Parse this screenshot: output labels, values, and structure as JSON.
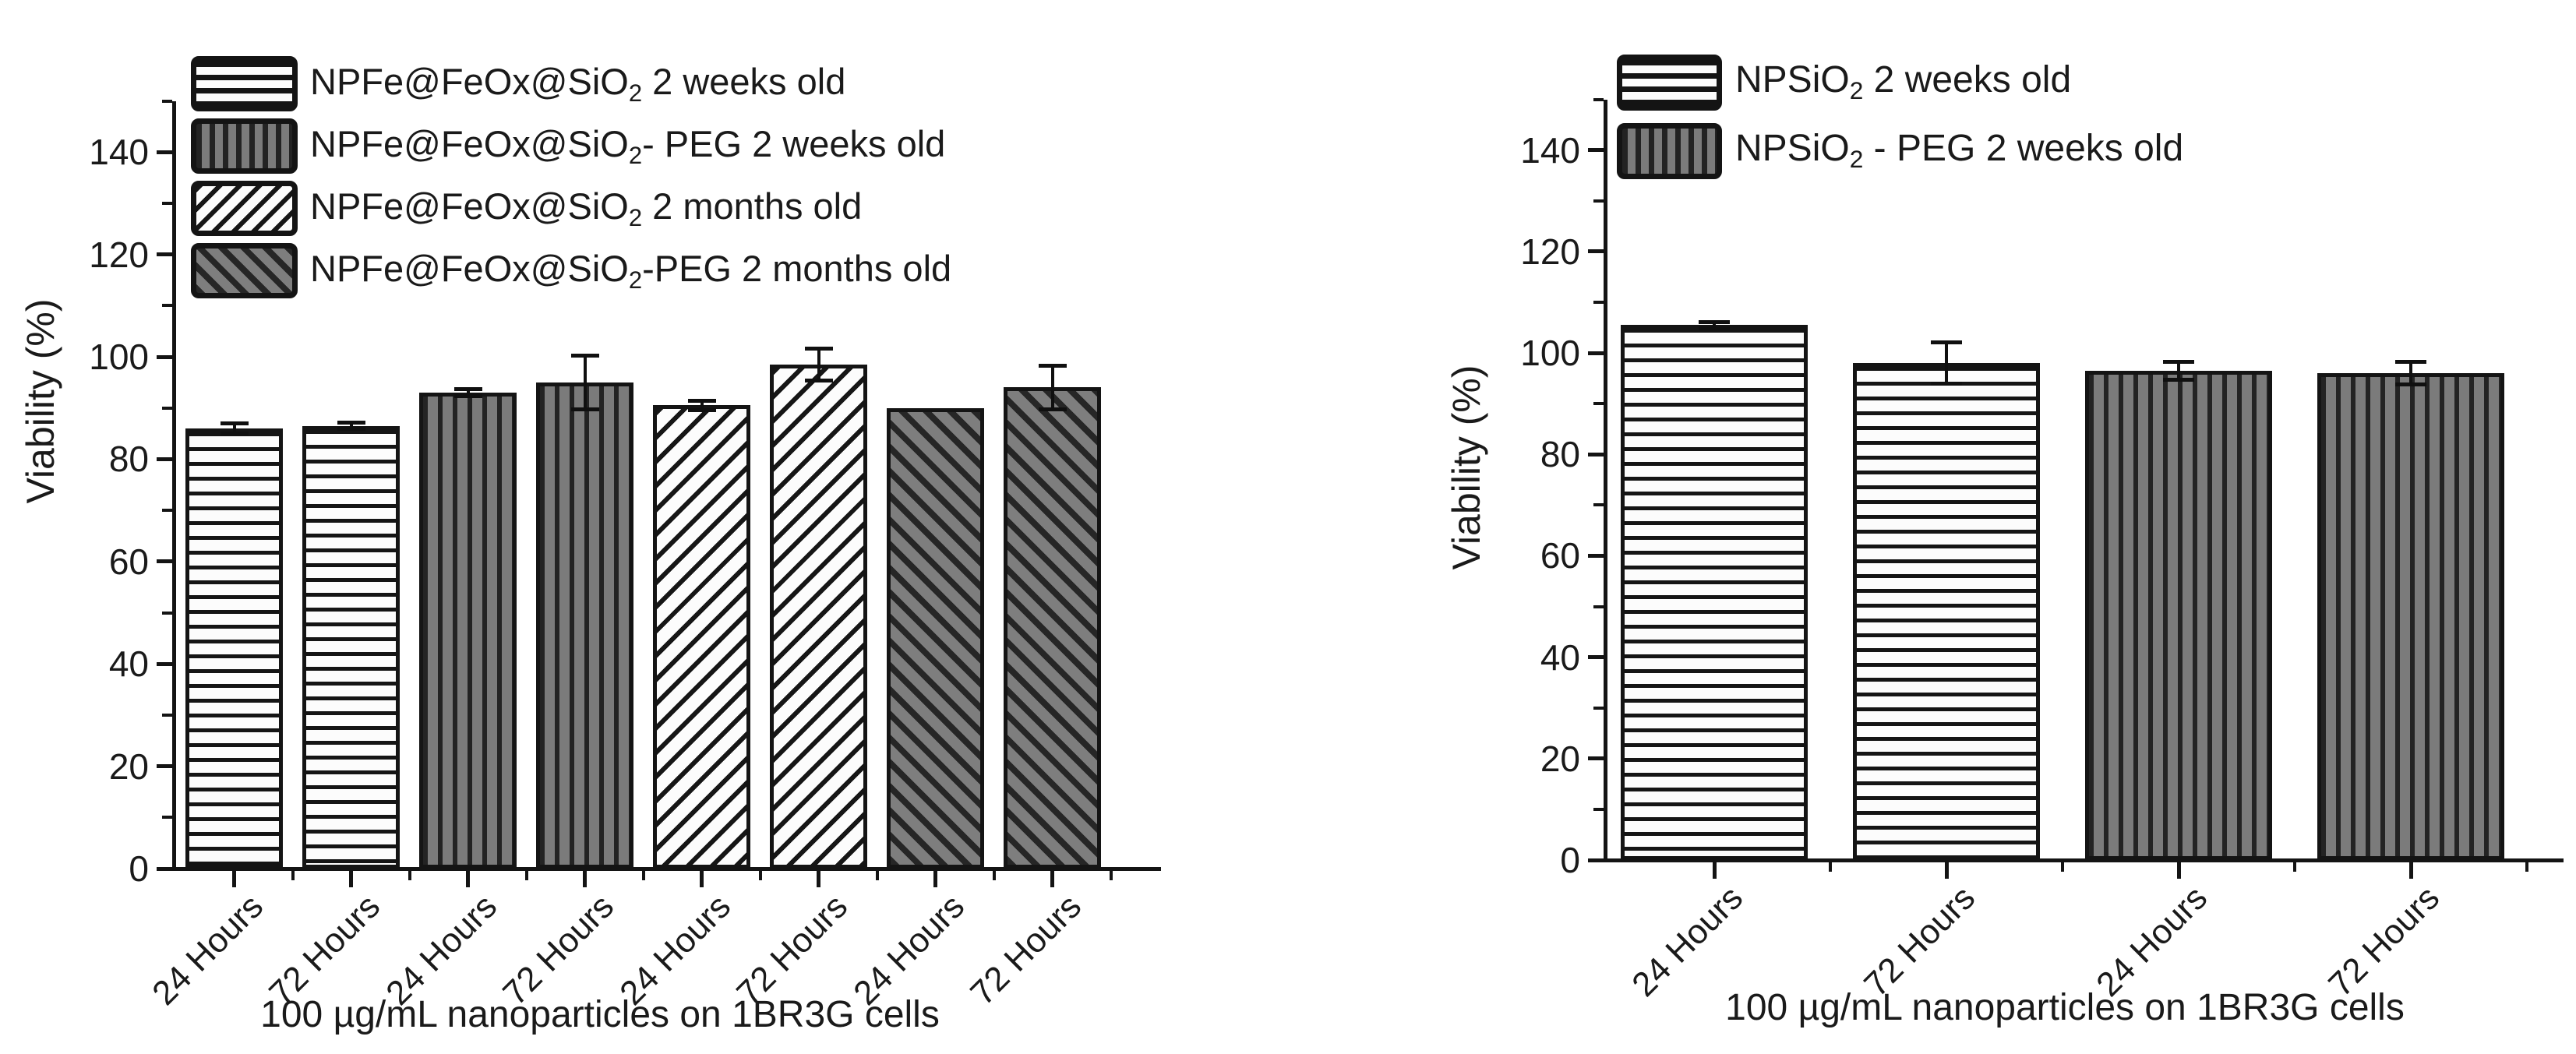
{
  "figure": {
    "background": "#ffffff",
    "ink_color": "#1a1a1a",
    "gray_fill": "#7b7b7b",
    "white_fill": "#fcfcfc"
  },
  "chart_data": [
    {
      "type": "bar",
      "title": "",
      "xlabel": "100 µg/mL nanoparticles on 1BR3G cells",
      "ylabel": "Viability (%)",
      "ylim": [
        0,
        150
      ],
      "yticks": [
        0,
        20,
        40,
        60,
        80,
        100,
        120,
        140
      ],
      "y_minor_ticks": [
        10,
        30,
        50,
        70,
        90,
        110,
        130,
        150
      ],
      "grid": false,
      "legend_position": "top-left-inside",
      "categories": [
        "24 Hours",
        "72 Hours",
        "24 Hours",
        "72 Hours",
        "24 Hours",
        "72 Hours",
        "24 Hours",
        "72 Hours"
      ],
      "values": [
        86,
        86.5,
        93,
        95,
        90.5,
        98.5,
        90,
        94
      ],
      "errors": [
        1,
        0.7,
        0.8,
        5.3,
        1,
        3.2,
        0,
        4.3
      ],
      "bar_series_index": [
        0,
        0,
        1,
        1,
        2,
        2,
        3,
        3
      ],
      "series": [
        {
          "name": "NPFe@FeOx@SiO2 2 weeks old",
          "pattern": "hlines",
          "segments": [
            {
              "t": "NPFe@FeOx@SiO"
            },
            {
              "t": "2",
              "sub": true
            },
            {
              "t": " 2 weeks old"
            }
          ]
        },
        {
          "name": "NPFe@FeOx@SiO2- PEG 2 weeks old",
          "pattern": "vlines",
          "segments": [
            {
              "t": "NPFe@FeOx@SiO"
            },
            {
              "t": "2",
              "sub": true
            },
            {
              "t": "- PEG 2 weeks old"
            }
          ]
        },
        {
          "name": "NPFe@FeOx@SiO2 2 months old",
          "pattern": "diag_up",
          "segments": [
            {
              "t": "NPFe@FeOx@SiO"
            },
            {
              "t": "2",
              "sub": true
            },
            {
              "t": " 2 months old"
            }
          ]
        },
        {
          "name": "NPFe@FeOx@SiO2-PEG 2 months old",
          "pattern": "diag_down",
          "segments": [
            {
              "t": "NPFe@FeOx@SiO"
            },
            {
              "t": "2",
              "sub": true
            },
            {
              "t": "-PEG 2 months old"
            }
          ]
        }
      ],
      "pattern_descriptions": {
        "hlines": "black horizontal stripes on white",
        "vlines": "dark vertical stripes on gray",
        "diag_up": "black diagonal stripes rising right on white",
        "diag_down": "dark diagonal stripes falling right on gray"
      }
    },
    {
      "type": "bar",
      "title": "",
      "xlabel": "100 µg/mL nanoparticles on 1BR3G cells",
      "ylabel": "Viability (%)",
      "ylim": [
        0,
        150
      ],
      "yticks": [
        0,
        20,
        40,
        60,
        80,
        100,
        120,
        140
      ],
      "y_minor_ticks": [
        10,
        30,
        50,
        70,
        90,
        110,
        130,
        150
      ],
      "grid": false,
      "legend_position": "top-left-inside",
      "categories": [
        "24 Hours",
        "72 Hours",
        "24 Hours",
        "72 Hours"
      ],
      "values": [
        105.5,
        98,
        96.5,
        96
      ],
      "errors": [
        0.7,
        4.2,
        1.8,
        2.3
      ],
      "bar_series_index": [
        0,
        0,
        1,
        1
      ],
      "series": [
        {
          "name": "NPSiO2 2 weeks old",
          "pattern": "hlines",
          "segments": [
            {
              "t": "NPSiO"
            },
            {
              "t": "2",
              "sub": true
            },
            {
              "t": " 2 weeks old"
            }
          ]
        },
        {
          "name": "NPSiO2 - PEG 2 weeks old",
          "pattern": "vlines",
          "segments": [
            {
              "t": "NPSiO"
            },
            {
              "t": "2",
              "sub": true
            },
            {
              "t": " - PEG 2 weeks old"
            }
          ]
        }
      ],
      "pattern_descriptions": {
        "hlines": "black horizontal stripes on white",
        "vlines": "dark vertical stripes on gray"
      }
    }
  ]
}
